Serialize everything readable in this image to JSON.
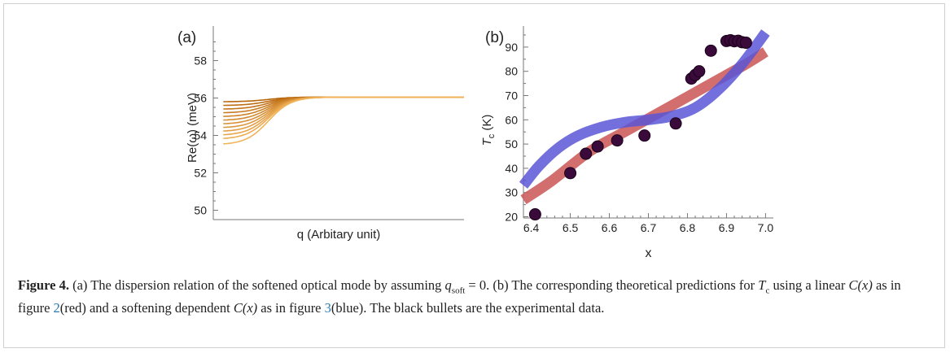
{
  "figure": {
    "panel_a_label": "(a)",
    "panel_b_label": "(b)"
  },
  "caption": {
    "label": "Figure 4.",
    "text_a1": " (a) The dispersion relation of the softened optical mode by assuming ",
    "q_symbol": "q",
    "q_sub": "soft",
    "eq_tail": " = 0. (b) The corresponding theoretical predictions for ",
    "tc_symbol": "T",
    "tc_sub": "c",
    "text_b2": " using a linear ",
    "cx1": "C(x)",
    "text_b3": " as in figure ",
    "ref1": "2",
    "text_b4": "(red) and a softening dependent ",
    "cx2": "C(x)",
    "text_b5": " as in figure ",
    "ref2": "3",
    "text_b6": "(blue). The black bullets are the experimental data."
  },
  "colors": {
    "curve_dark": "#b8660c",
    "curve_light": "#f1b35a",
    "red_fit": "#cc5a5a",
    "blue_fit": "#5b56d6",
    "points": "#3a0a3a",
    "axis": "#777777"
  },
  "chart_data": [
    {
      "type": "line",
      "panel": "(a)",
      "title": "",
      "xlabel": "q (Arbitary unit)",
      "ylabel": "Re(ω) (meV)",
      "ylim": [
        49.5,
        59.5
      ],
      "yticks": [
        50,
        52,
        54,
        56,
        58
      ],
      "xticks": [],
      "x_domain": [
        0,
        1
      ],
      "plateau": 56.05,
      "series_min_values": [
        55.8,
        55.6,
        55.4,
        55.2,
        55.0,
        54.8,
        54.6,
        54.4,
        54.2,
        54.0,
        53.8,
        53.5
      ]
    },
    {
      "type": "scatter",
      "panel": "(b)",
      "title": "",
      "xlabel": "x",
      "ylabel": "T_c (K)",
      "ylabel_main": "T",
      "ylabel_sub": "c",
      "ylabel_unit": " (K)",
      "xlim": [
        6.38,
        7.02
      ],
      "ylim": [
        19.5,
        96
      ],
      "xticks": [
        6.4,
        6.5,
        6.6,
        6.7,
        6.8,
        6.9,
        7.0
      ],
      "yticks": [
        20,
        30,
        40,
        50,
        60,
        70,
        80,
        90
      ],
      "points": [
        [
          6.41,
          21
        ],
        [
          6.5,
          38
        ],
        [
          6.54,
          46
        ],
        [
          6.57,
          49
        ],
        [
          6.62,
          51.5
        ],
        [
          6.69,
          53.5
        ],
        [
          6.77,
          58.5
        ],
        [
          6.81,
          77
        ],
        [
          6.82,
          78.5
        ],
        [
          6.83,
          80
        ],
        [
          6.86,
          88.5
        ],
        [
          6.9,
          92.5
        ],
        [
          6.91,
          92.8
        ],
        [
          6.92,
          92.4
        ],
        [
          6.93,
          92.6
        ],
        [
          6.94,
          92
        ],
        [
          6.95,
          91.8
        ]
      ],
      "fits": [
        {
          "color": "red",
          "x": [
            6.38,
            6.45,
            6.55,
            6.65,
            6.75,
            6.85,
            6.95,
            7.0
          ],
          "y": [
            27,
            34.5,
            47,
            56,
            65,
            74,
            83,
            88
          ]
        },
        {
          "color": "blue",
          "x": [
            6.38,
            6.42,
            6.47,
            6.52,
            6.58,
            6.64,
            6.7,
            6.76,
            6.82,
            6.88,
            6.94,
            7.0
          ],
          "y": [
            33,
            41,
            48.5,
            53.5,
            57,
            59,
            60,
            61.5,
            65,
            72.5,
            83,
            96
          ]
        }
      ]
    }
  ]
}
